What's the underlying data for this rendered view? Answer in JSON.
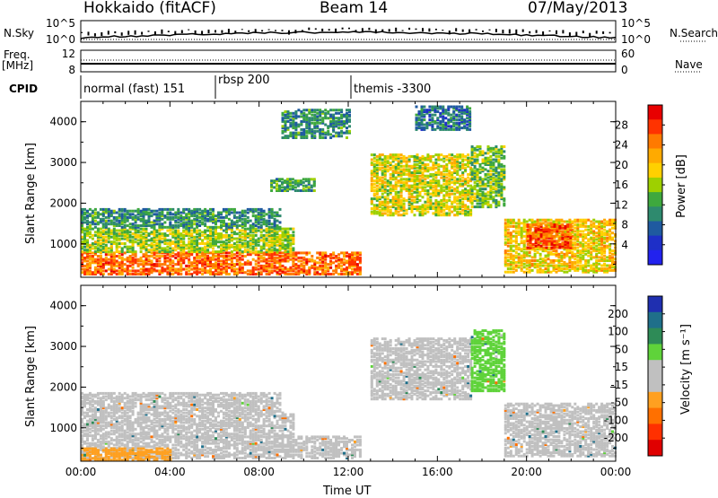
{
  "header": {
    "station": "Hokkaido (fitACF)",
    "beam": "Beam 14",
    "date": "07/May/2013"
  },
  "labels": {
    "nsky": "N.Sky",
    "nsearch": "N.Search",
    "freq": "Freq.",
    "mhz": "[MHz]",
    "nave": "Nave",
    "cpid": "CPID",
    "xtitle": "Time UT",
    "power_ytitle": "Slant Range [km]",
    "vel_ytitle": "Slant Range [km]",
    "power_cbtitle": "Power [dB]",
    "vel_cbtitle": "Velocity [m s⁻¹]"
  },
  "noise_panel": {
    "left_ticks": [
      "10^5",
      "10^0"
    ],
    "right_ticks": [
      "10^5",
      "10^0"
    ]
  },
  "freq_panel": {
    "left_ticks": [
      "12",
      "8"
    ],
    "right_ticks": [
      "60",
      "0"
    ]
  },
  "cpid": [
    {
      "label": "normal (fast) 151",
      "start_hour": 0
    },
    {
      "label": "rbsp 200",
      "start_hour": 6
    },
    {
      "label": "themis -3300",
      "start_hour": 12
    }
  ],
  "power_colorbar": {
    "labels": [
      "28",
      "24",
      "20",
      "16",
      "12",
      "8",
      "4"
    ],
    "colors": [
      "#e80000",
      "#ff3300",
      "#ff7a00",
      "#ffaa00",
      "#ffd000",
      "#9ed000",
      "#3ea83e",
      "#2e8a6e",
      "#1f5aa0",
      "#1e2fc8",
      "#2222ee"
    ]
  },
  "velocity_colorbar": {
    "labels": [
      "200",
      "100",
      "50",
      "15",
      "-15",
      "-50",
      "-100",
      "-200"
    ],
    "colors": [
      "#1f2fb0",
      "#1f6f8a",
      "#2e8b57",
      "#5fd33a",
      "#c0c0c0",
      "#c0c0c0",
      "#ffa020",
      "#ff7000",
      "#ff3000",
      "#e00000"
    ]
  },
  "chart_data": [
    {
      "type": "heatmap",
      "quantity": "power",
      "units": "dB",
      "xlabel": "Time UT",
      "ylabel": "Slant Range [km]",
      "x_ticks": [
        "00:00",
        "04:00",
        "08:00",
        "12:00",
        "16:00",
        "20:00",
        "00:00"
      ],
      "y_ticks": [
        1000,
        2000,
        3000,
        4000
      ],
      "xlim_hours": [
        0,
        24
      ],
      "ylim_km": [
        180,
        4500
      ],
      "colorbar_range_db": [
        0,
        32
      ],
      "echo_regions": [
        {
          "t0": 0,
          "t1": 12.5,
          "r0": 250,
          "r1": 800,
          "level": 26
        },
        {
          "t0": 0,
          "t1": 9.5,
          "r0": 800,
          "r1": 1400,
          "level": 16
        },
        {
          "t0": 0,
          "t1": 9,
          "r0": 1400,
          "r1": 1850,
          "level": 10
        },
        {
          "t0": 8.5,
          "t1": 10.5,
          "r0": 2300,
          "r1": 2600,
          "level": 12
        },
        {
          "t0": 9,
          "t1": 12,
          "r0": 3600,
          "r1": 4300,
          "level": 10
        },
        {
          "t0": 13,
          "t1": 17.5,
          "r0": 1700,
          "r1": 3200,
          "level": 18
        },
        {
          "t0": 15,
          "t1": 17.5,
          "r0": 3800,
          "r1": 4400,
          "level": 8
        },
        {
          "t0": 17.5,
          "t1": 19,
          "r0": 1900,
          "r1": 3400,
          "level": 14
        },
        {
          "t0": 19,
          "t1": 24,
          "r0": 300,
          "r1": 1600,
          "level": 20
        },
        {
          "t0": 20,
          "t1": 22,
          "r0": 900,
          "r1": 1500,
          "level": 28
        }
      ]
    },
    {
      "type": "heatmap",
      "quantity": "velocity",
      "units": "m/s",
      "xlabel": "Time UT",
      "ylabel": "Slant Range [km]",
      "x_ticks": [
        "00:00",
        "04:00",
        "08:00",
        "12:00",
        "16:00",
        "20:00",
        "00:00"
      ],
      "y_ticks": [
        1000,
        2000,
        3000,
        4000
      ],
      "xlim_hours": [
        0,
        24
      ],
      "ylim_km": [
        180,
        4500
      ],
      "echo_regions": [
        {
          "t0": 0,
          "t1": 12.5,
          "r0": 250,
          "r1": 800,
          "velocity": 0
        },
        {
          "t0": 0,
          "t1": 9.5,
          "r0": 800,
          "r1": 1400,
          "velocity": 0
        },
        {
          "t0": 0,
          "t1": 9,
          "r0": 1400,
          "r1": 1850,
          "velocity": 0
        },
        {
          "t0": 13,
          "t1": 17.5,
          "r0": 1700,
          "r1": 3200,
          "velocity": 0
        },
        {
          "t0": 17.5,
          "t1": 19,
          "r0": 1900,
          "r1": 3400,
          "velocity": 30
        },
        {
          "t0": 19,
          "t1": 24,
          "r0": 300,
          "r1": 1600,
          "velocity": 0
        },
        {
          "t0": 0,
          "t1": 4,
          "r0": 200,
          "r1": 500,
          "velocity": -60
        }
      ]
    }
  ]
}
